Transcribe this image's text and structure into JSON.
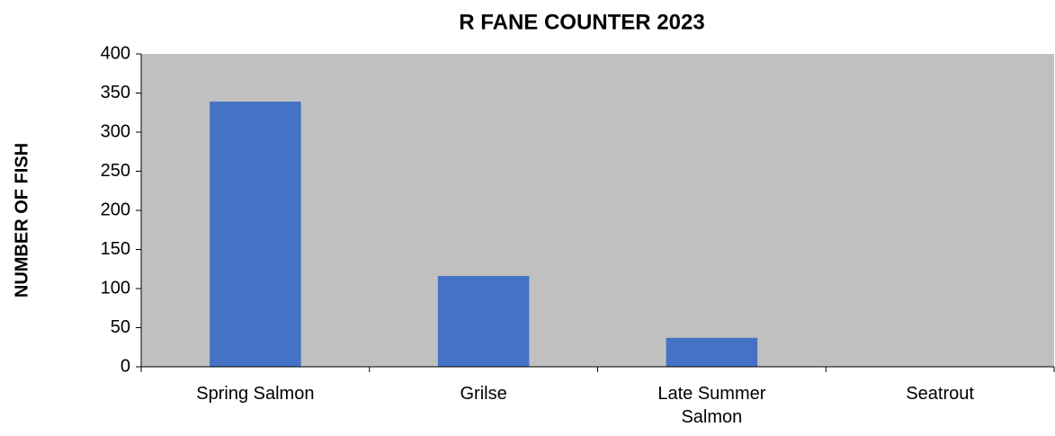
{
  "chart_data": {
    "type": "bar",
    "title": "R FANE COUNTER 2023",
    "y_label": "NUMBER OF FISH",
    "categories": [
      "Spring Salmon",
      "Grilse",
      "Late Summer Salmon",
      "Seatrout"
    ],
    "values": [
      339,
      116,
      37,
      0
    ],
    "color": "#4472c4",
    "ylim": [
      0,
      400
    ],
    "yticks": [
      0,
      50,
      100,
      150,
      200,
      250,
      300,
      350,
      400
    ],
    "grid": false,
    "plot_background": "#c0c0c0"
  }
}
